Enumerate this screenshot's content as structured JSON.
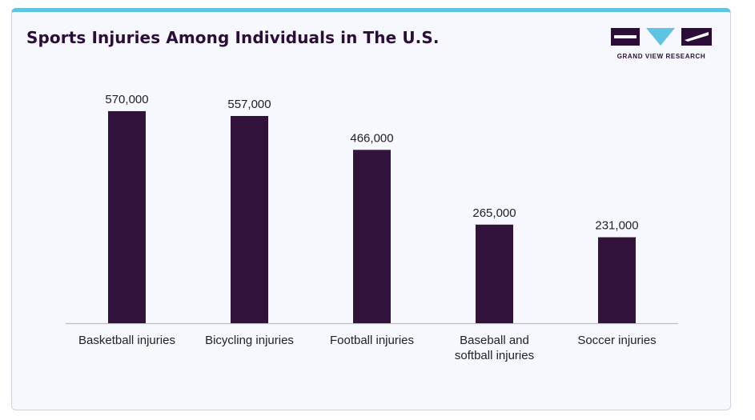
{
  "colors": {
    "bar": "#33133c",
    "title": "#2c0d3a",
    "accent": "#5fc3e4",
    "axis": "#bcbcc6",
    "text": "#222222"
  },
  "logo": {
    "icon": "grand-view-research-logo",
    "text": "GRAND VIEW RESEARCH"
  },
  "chart_data": {
    "type": "bar",
    "title": "Sports Injuries Among Individuals in The U.S.",
    "categories": [
      [
        "Basketball injuries"
      ],
      [
        "Bicycling injuries"
      ],
      [
        "Football injuries"
      ],
      [
        "Baseball and",
        "softball injuries"
      ],
      [
        "Soccer injuries"
      ]
    ],
    "values": [
      570000,
      557000,
      466000,
      265000,
      231000
    ],
    "value_labels": [
      "570,000",
      "557,000",
      "466,000",
      "265,000",
      "231,000"
    ],
    "ylim": [
      0,
      600000
    ],
    "grid": false,
    "legend": "none"
  }
}
